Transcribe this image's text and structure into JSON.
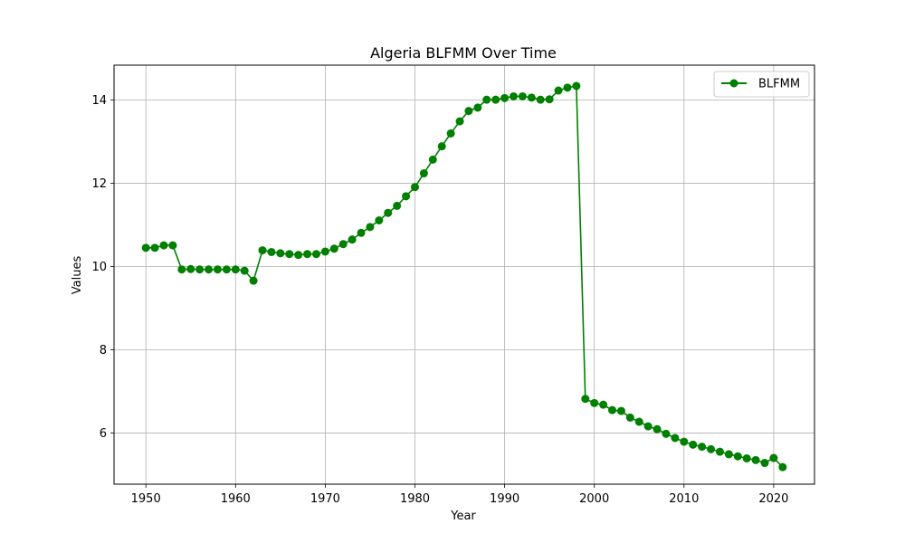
{
  "chart_data": {
    "type": "line",
    "title": "Algeria BLFMM Over Time",
    "xlabel": "Year",
    "ylabel": "Values",
    "xlim": [
      1946.45,
      2024.55
    ],
    "ylim": [
      4.77,
      14.84
    ],
    "xticks": [
      1950,
      1960,
      1970,
      1980,
      1990,
      2000,
      2010,
      2020
    ],
    "yticks": [
      6,
      8,
      10,
      12,
      14
    ],
    "grid": true,
    "legend_position": "top-right",
    "series": [
      {
        "name": "BLFMM",
        "color": "#008000",
        "marker": "circle",
        "x": [
          1950,
          1951,
          1952,
          1953,
          1954,
          1955,
          1956,
          1957,
          1958,
          1959,
          1960,
          1961,
          1962,
          1963,
          1964,
          1965,
          1966,
          1967,
          1968,
          1969,
          1970,
          1971,
          1972,
          1973,
          1974,
          1975,
          1976,
          1977,
          1978,
          1979,
          1980,
          1981,
          1982,
          1983,
          1984,
          1985,
          1986,
          1987,
          1988,
          1989,
          1990,
          1991,
          1992,
          1993,
          1994,
          1995,
          1996,
          1997,
          1998,
          1999,
          2000,
          2001,
          2002,
          2003,
          2004,
          2005,
          2006,
          2007,
          2008,
          2009,
          2010,
          2011,
          2012,
          2013,
          2014,
          2015,
          2016,
          2017,
          2018,
          2019,
          2020,
          2021
        ],
        "values": [
          10.45,
          10.45,
          10.51,
          10.51,
          9.93,
          9.94,
          9.93,
          9.93,
          9.93,
          9.93,
          9.93,
          9.9,
          9.66,
          10.39,
          10.35,
          10.32,
          10.3,
          10.28,
          10.3,
          10.3,
          10.36,
          10.43,
          10.54,
          10.65,
          10.81,
          10.95,
          11.11,
          11.29,
          11.46,
          11.69,
          11.91,
          12.24,
          12.57,
          12.89,
          13.2,
          13.49,
          13.74,
          13.82,
          14.01,
          14.01,
          14.05,
          14.09,
          14.09,
          14.06,
          14.01,
          14.02,
          14.23,
          14.3,
          14.34,
          6.82,
          6.72,
          6.68,
          6.55,
          6.53,
          6.37,
          6.27,
          6.16,
          6.09,
          5.98,
          5.88,
          5.79,
          5.72,
          5.67,
          5.61,
          5.55,
          5.49,
          5.44,
          5.39,
          5.35,
          5.28,
          5.4,
          5.18
        ]
      }
    ]
  }
}
